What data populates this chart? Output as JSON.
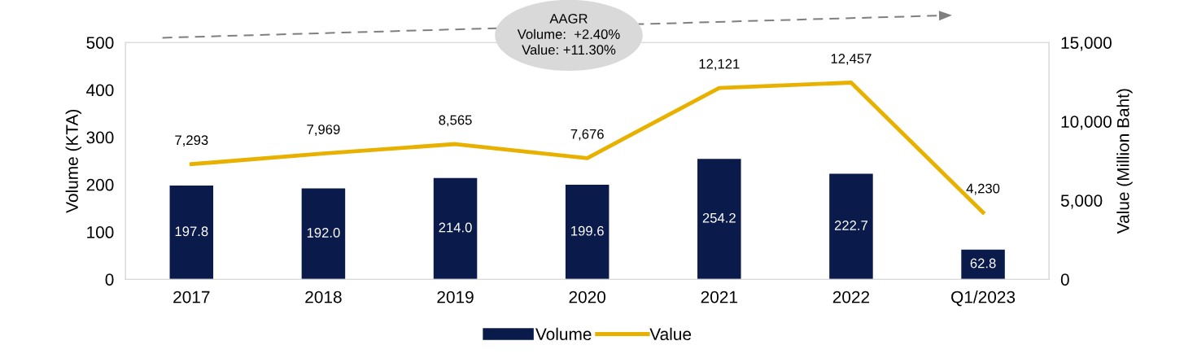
{
  "chart_data": {
    "type": "bar",
    "categories": [
      "2017",
      "2018",
      "2019",
      "2020",
      "2021",
      "2022",
      "Q1/2023"
    ],
    "ylabel": "Volume (KTA)",
    "y2label": "Value (Million Baht)",
    "ylim": [
      0,
      500
    ],
    "yticks": [
      0,
      100,
      200,
      300,
      400,
      500
    ],
    "y2lim": [
      0,
      15000
    ],
    "y2ticks": [
      0,
      {
        "value": 5000,
        "label": "5,000"
      },
      {
        "value": 10000,
        "label": "10,000"
      },
      {
        "value": 15000,
        "label": "15,000"
      }
    ],
    "series": [
      {
        "name": "Volume",
        "color": "#0a1a4a",
        "values": [
          197.8,
          192.0,
          214.0,
          199.6,
          254.2,
          222.7,
          62.8
        ],
        "value_labels": [
          "197.8",
          "192.0",
          "214.0",
          "199.6",
          "254.2",
          "222.7",
          "62.8"
        ]
      },
      {
        "name": "Value",
        "type": "line",
        "axis": "y2",
        "color": "#e8b100",
        "marker": "none",
        "line_style": "solid",
        "values": [
          7293,
          7969,
          8565,
          7676,
          12121,
          12457,
          4230
        ],
        "value_labels": [
          "7,293",
          "7,969",
          "8,565",
          "7,676",
          "12,121",
          "12,457",
          "4,230"
        ]
      }
    ],
    "annotations": [
      "AAGR\nVolume:  +2.40%\nValue: +11.30%"
    ],
    "grid": false,
    "legend": "bottom"
  }
}
